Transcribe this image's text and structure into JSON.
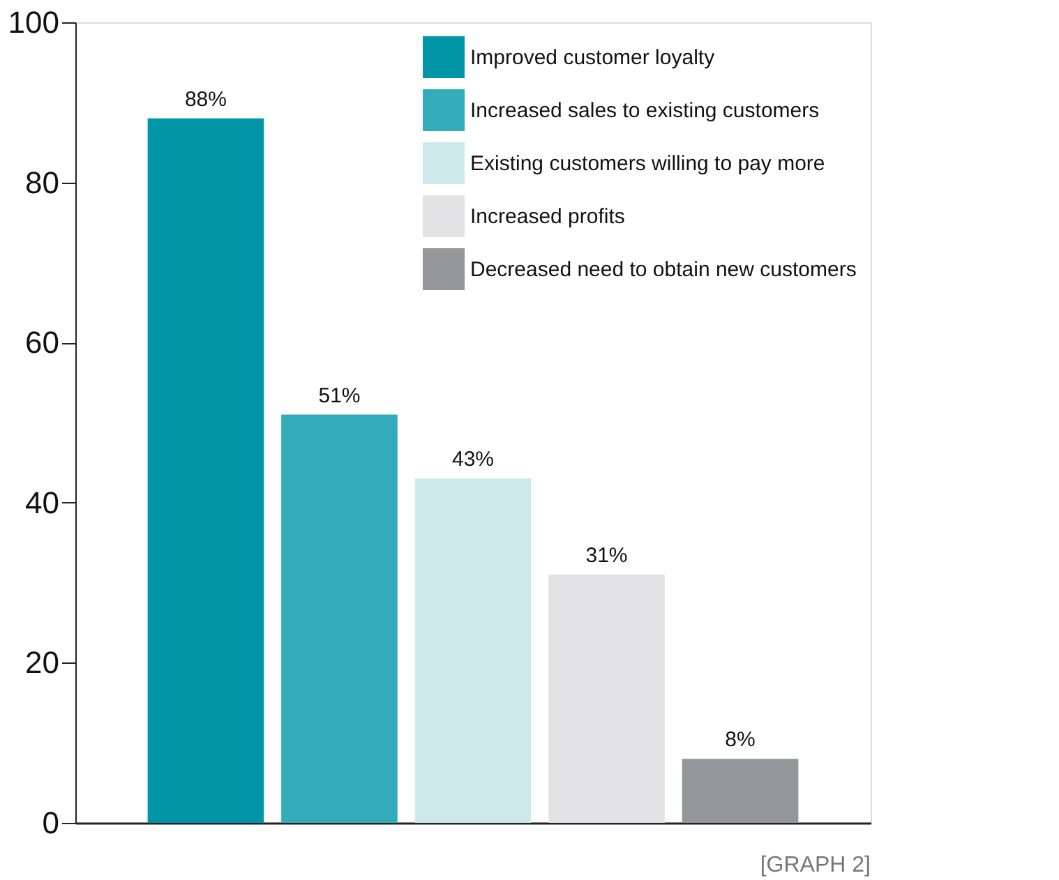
{
  "chart_data": {
    "type": "bar",
    "categories": [
      null
    ],
    "series": [
      {
        "name": "Improved customer loyalty",
        "color": "#0096a8",
        "values": [
          88
        ],
        "value_labels": [
          "88%"
        ]
      },
      {
        "name": "Increased sales to existing customers",
        "color": "#34abbb",
        "values": [
          51
        ],
        "value_labels": [
          "51%"
        ]
      },
      {
        "name": "Existing customers willing to pay more",
        "color": "#cde9ec",
        "values": [
          43
        ],
        "value_labels": [
          "43%"
        ]
      },
      {
        "name": "Increased profits",
        "color": "#e3e3e5",
        "values": [
          31
        ],
        "value_labels": [
          "31%"
        ]
      },
      {
        "name": "Decreased need to obtain new customers",
        "color": "#959699",
        "values": [
          8
        ],
        "value_labels": [
          "8%"
        ]
      }
    ],
    "ylim": [
      0,
      100
    ],
    "yticks": [
      0,
      20,
      40,
      60,
      80,
      100
    ],
    "grid": false,
    "legend": "top right",
    "tick_labels": "y",
    "annotations": [
      "[GRAPH 2]"
    ]
  }
}
